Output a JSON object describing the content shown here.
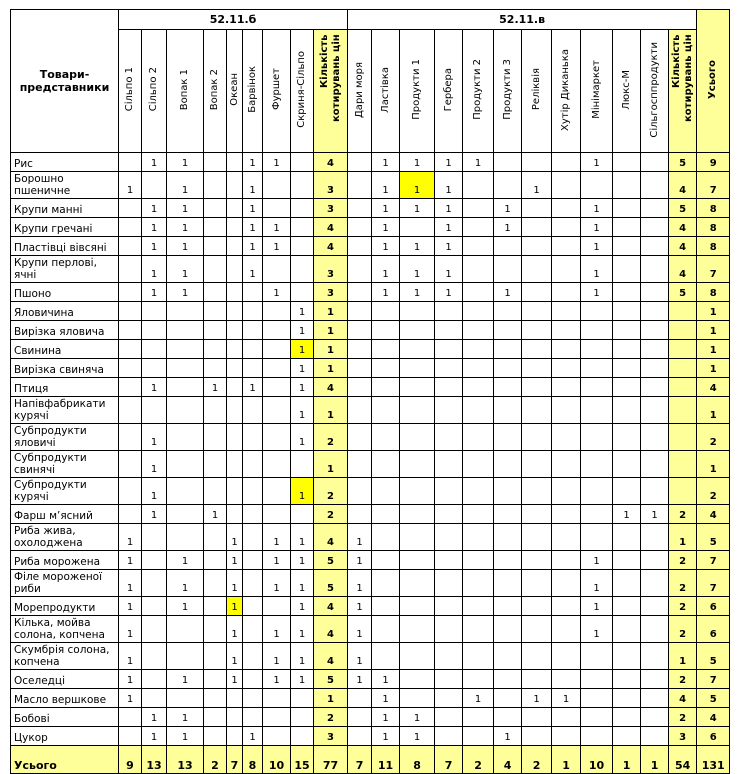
{
  "header": {
    "corner": "Товари-представники",
    "group_b": "52.11.б",
    "group_v": "52.11.в",
    "columns": [
      "Сільпо 1",
      "Сільпо 2",
      "Вопак 1",
      "Вопак 2",
      "Океан",
      "Барвінок",
      "Фуршет",
      "Скриня-Сільпо",
      "Кількість котирувань цін",
      "Дари моря",
      "Ластівка",
      "Продукти  1",
      "Гербера",
      "Продукти  2",
      "Продукти  3",
      "Реліквія",
      "Хутір Диканька",
      "Мінімаркет",
      "Люкс-М",
      "Сільгосппродукти",
      "Кількість котирувань цін"
    ],
    "total": "Усього"
  },
  "colors": {
    "summary_fill": "#ffff99",
    "highlight_fill": "#ffff00"
  },
  "rows": [
    {
      "name": "Рис",
      "cells": [
        "",
        "1",
        "1",
        "",
        "",
        "1",
        "1",
        "",
        "4",
        "",
        "1",
        "1",
        "1",
        "1",
        "",
        "",
        "",
        "1",
        "",
        "",
        "5",
        "9"
      ]
    },
    {
      "name": "Борошно пшеничне",
      "cells": [
        "1",
        "",
        "1",
        "",
        "",
        "1",
        "",
        "",
        "3",
        "",
        "1",
        "1",
        "1",
        "",
        "",
        "1",
        "",
        "",
        "",
        "",
        "4",
        "7"
      ],
      "highlight": [
        11
      ]
    },
    {
      "name": "Крупи манні",
      "cells": [
        "",
        "1",
        "1",
        "",
        "",
        "1",
        "",
        "",
        "3",
        "",
        "1",
        "1",
        "1",
        "",
        "1",
        "",
        "",
        "1",
        "",
        "",
        "5",
        "8"
      ]
    },
    {
      "name": "Крупи гречані",
      "cells": [
        "",
        "1",
        "1",
        "",
        "",
        "1",
        "1",
        "",
        "4",
        "",
        "1",
        "",
        "1",
        "",
        "1",
        "",
        "",
        "1",
        "",
        "",
        "4",
        "8"
      ]
    },
    {
      "name": "Пластівці вівсяні",
      "cells": [
        "",
        "1",
        "1",
        "",
        "",
        "1",
        "1",
        "",
        "4",
        "",
        "1",
        "1",
        "1",
        "",
        "",
        "",
        "",
        "1",
        "",
        "",
        "4",
        "8"
      ]
    },
    {
      "name": "Крупи перлові, ячні",
      "cells": [
        "",
        "1",
        "1",
        "",
        "",
        "1",
        "",
        "",
        "3",
        "",
        "1",
        "1",
        "1",
        "",
        "",
        "",
        "",
        "1",
        "",
        "",
        "4",
        "7"
      ]
    },
    {
      "name": "Пшоно",
      "cells": [
        "",
        "1",
        "1",
        "",
        "",
        "",
        "1",
        "",
        "3",
        "",
        "1",
        "1",
        "1",
        "",
        "1",
        "",
        "",
        "1",
        "",
        "",
        "5",
        "8"
      ]
    },
    {
      "name": "Яловичина",
      "cells": [
        "",
        "",
        "",
        "",
        "",
        "",
        "",
        "1",
        "1",
        "",
        "",
        "",
        "",
        "",
        "",
        "",
        "",
        "",
        "",
        "",
        "",
        "1"
      ]
    },
    {
      "name": "Вирізка яловича",
      "cells": [
        "",
        "",
        "",
        "",
        "",
        "",
        "",
        "1",
        "1",
        "",
        "",
        "",
        "",
        "",
        "",
        "",
        "",
        "",
        "",
        "",
        "",
        "1"
      ]
    },
    {
      "name": "Свинина",
      "cells": [
        "",
        "",
        "",
        "",
        "",
        "",
        "",
        "1",
        "1",
        "",
        "",
        "",
        "",
        "",
        "",
        "",
        "",
        "",
        "",
        "",
        "",
        "1"
      ],
      "highlight": [
        7
      ]
    },
    {
      "name": "Вирізка свиняча",
      "cells": [
        "",
        "",
        "",
        "",
        "",
        "",
        "",
        "1",
        "1",
        "",
        "",
        "",
        "",
        "",
        "",
        "",
        "",
        "",
        "",
        "",
        "",
        "1"
      ]
    },
    {
      "name": "Птиця",
      "cells": [
        "",
        "1",
        "",
        "1",
        "",
        "1",
        "",
        "1",
        "4",
        "",
        "",
        "",
        "",
        "",
        "",
        "",
        "",
        "",
        "",
        "",
        "",
        "4"
      ]
    },
    {
      "name": "Напівфабрикати курячі",
      "cells": [
        "",
        "",
        "",
        "",
        "",
        "",
        "",
        "1",
        "1",
        "",
        "",
        "",
        "",
        "",
        "",
        "",
        "",
        "",
        "",
        "",
        "",
        "1"
      ]
    },
    {
      "name": "Субпродукти яловичі",
      "cells": [
        "",
        "1",
        "",
        "",
        "",
        "",
        "",
        "1",
        "2",
        "",
        "",
        "",
        "",
        "",
        "",
        "",
        "",
        "",
        "",
        "",
        "",
        "2"
      ]
    },
    {
      "name": "Субпродукти свинячі",
      "cells": [
        "",
        "1",
        "",
        "",
        "",
        "",
        "",
        "",
        "1",
        "",
        "",
        "",
        "",
        "",
        "",
        "",
        "",
        "",
        "",
        "",
        "",
        "1"
      ]
    },
    {
      "name": "Субпродукти курячі",
      "cells": [
        "",
        "1",
        "",
        "",
        "",
        "",
        "",
        "1",
        "2",
        "",
        "",
        "",
        "",
        "",
        "",
        "",
        "",
        "",
        "",
        "",
        "",
        "2"
      ],
      "highlight": [
        7
      ]
    },
    {
      "name": "Фарш м’ясний",
      "cells": [
        "",
        "1",
        "",
        "1",
        "",
        "",
        "",
        "",
        "2",
        "",
        "",
        "",
        "",
        "",
        "",
        "",
        "",
        "",
        "1",
        "1",
        "2",
        "4"
      ]
    },
    {
      "name": "Риба жива, охолоджена",
      "cells": [
        "1",
        "",
        "",
        "",
        "1",
        "",
        "1",
        "1",
        "4",
        "1",
        "",
        "",
        "",
        "",
        "",
        "",
        "",
        "",
        "",
        "",
        "1",
        "5"
      ]
    },
    {
      "name": "Риба морожена",
      "cells": [
        "1",
        "",
        "1",
        "",
        "1",
        "",
        "1",
        "1",
        "5",
        "1",
        "",
        "",
        "",
        "",
        "",
        "",
        "",
        "1",
        "",
        "",
        "2",
        "7"
      ]
    },
    {
      "name": "Філе мороженої риби",
      "cells": [
        "1",
        "",
        "1",
        "",
        "1",
        "",
        "1",
        "1",
        "5",
        "1",
        "",
        "",
        "",
        "",
        "",
        "",
        "",
        "1",
        "",
        "",
        "2",
        "7"
      ]
    },
    {
      "name": "Морепродукти",
      "cells": [
        "1",
        "",
        "1",
        "",
        "1",
        "",
        "",
        "1",
        "4",
        "1",
        "",
        "",
        "",
        "",
        "",
        "",
        "",
        "1",
        "",
        "",
        "2",
        "6"
      ],
      "highlight": [
        4
      ]
    },
    {
      "name": "Кілька, мойва солона, копчена",
      "cells": [
        "1",
        "",
        "",
        "",
        "1",
        "",
        "1",
        "1",
        "4",
        "1",
        "",
        "",
        "",
        "",
        "",
        "",
        "",
        "1",
        "",
        "",
        "2",
        "6"
      ]
    },
    {
      "name": "Скумбрія солона, копчена",
      "cells": [
        "1",
        "",
        "",
        "",
        "1",
        "",
        "1",
        "1",
        "4",
        "1",
        "",
        "",
        "",
        "",
        "",
        "",
        "",
        "",
        "",
        "",
        "1",
        "5"
      ]
    },
    {
      "name": "Оселедці",
      "cells": [
        "1",
        "",
        "1",
        "",
        "1",
        "",
        "1",
        "1",
        "5",
        "1",
        "1",
        "",
        "",
        "",
        "",
        "",
        "",
        "",
        "",
        "",
        "2",
        "7"
      ]
    },
    {
      "name": "Масло вершкове",
      "cells": [
        "1",
        "",
        "",
        "",
        "",
        "",
        "",
        "",
        "1",
        "",
        "1",
        "",
        "",
        "1",
        "",
        "1",
        "1",
        "",
        "",
        "",
        "4",
        "5"
      ]
    },
    {
      "name": "Бобові",
      "cells": [
        "",
        "1",
        "1",
        "",
        "",
        "",
        "",
        "",
        "2",
        "",
        "1",
        "1",
        "",
        "",
        "",
        "",
        "",
        "",
        "",
        "",
        "2",
        "4"
      ]
    },
    {
      "name": "Цукор",
      "cells": [
        "",
        "1",
        "1",
        "",
        "",
        "1",
        "",
        "",
        "3",
        "",
        "1",
        "1",
        "",
        "",
        "1",
        "",
        "",
        "",
        "",
        "",
        "3",
        "6"
      ]
    }
  ],
  "totals": {
    "name": "Усього",
    "cells": [
      "9",
      "13",
      "13",
      "2",
      "7",
      "8",
      "10",
      "15",
      "77",
      "7",
      "11",
      "8",
      "7",
      "2",
      "4",
      "2",
      "1",
      "10",
      "1",
      "1",
      "54",
      "131"
    ]
  }
}
